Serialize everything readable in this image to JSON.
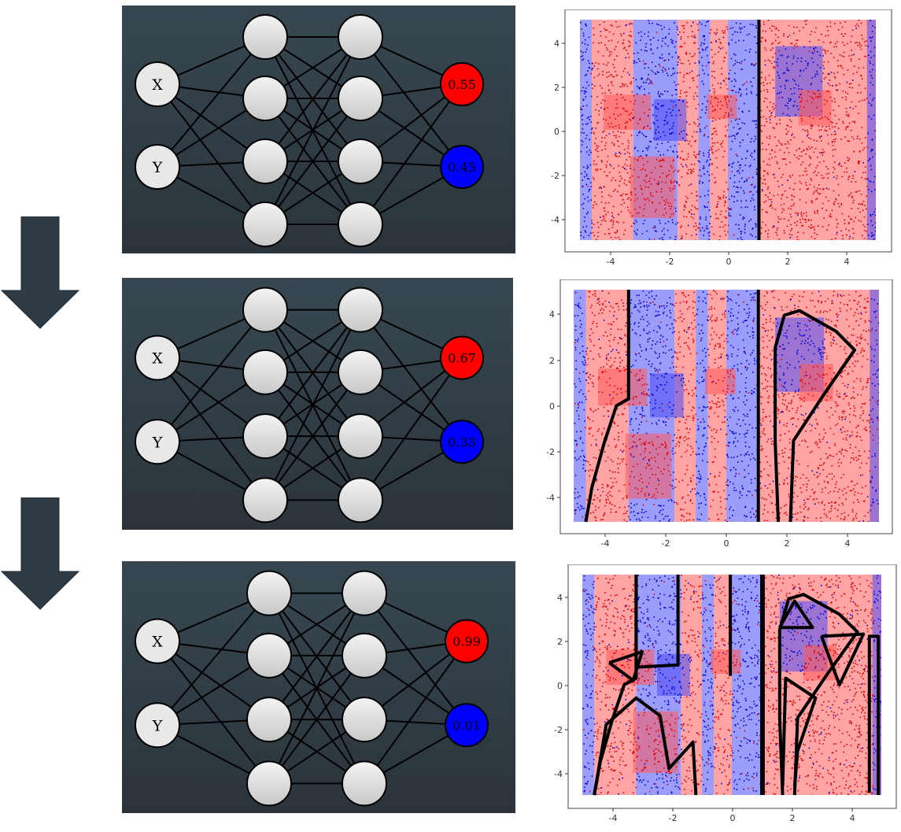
{
  "stages": [
    {
      "inputs": [
        "X",
        "Y"
      ],
      "outputs": [
        "0.55",
        "0.45"
      ]
    },
    {
      "inputs": [
        "X",
        "Y"
      ],
      "outputs": [
        "0.67",
        "0.33"
      ]
    },
    {
      "inputs": [
        "X",
        "Y"
      ],
      "outputs": [
        "0.99",
        "0.01"
      ]
    }
  ],
  "plot_axes": {
    "x_ticks": [
      "-4",
      "-2",
      "0",
      "2",
      "4"
    ],
    "y_ticks": [
      "4",
      "2",
      "0",
      "-2",
      "-4"
    ]
  },
  "colors": {
    "panel_top": "#374751",
    "panel_bottom": "#2b343a",
    "arrow": "#2e3b45",
    "red_class": "#ff0000",
    "blue_class": "#0000ff",
    "node_fill": "#e6e6e6",
    "line": "#000000"
  }
}
